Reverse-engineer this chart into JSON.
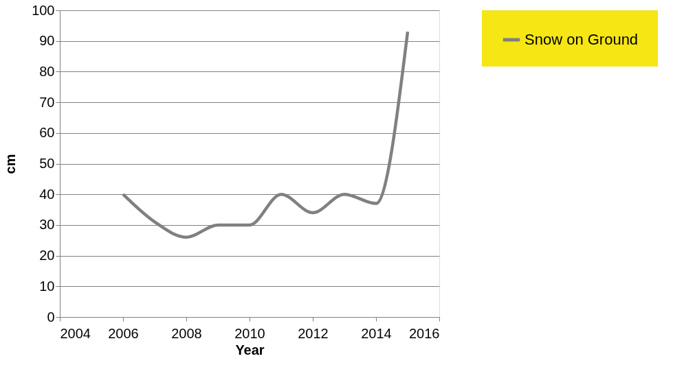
{
  "chart_data": {
    "type": "line",
    "xlabel": "Year",
    "ylabel": "cm",
    "x": [
      2006,
      2007,
      2008,
      2009,
      2010,
      2011,
      2012,
      2013,
      2014,
      2015
    ],
    "series": [
      {
        "name": "Snow on Ground",
        "color": "#808080",
        "values": [
          40,
          31,
          26,
          30,
          30,
          40,
          34,
          40,
          37,
          93
        ]
      }
    ],
    "xlim": [
      2004,
      2016
    ],
    "xticks": [
      2004,
      2006,
      2008,
      2010,
      2012,
      2014,
      2016
    ],
    "ylim": [
      0,
      100
    ],
    "yticks": [
      0,
      10,
      20,
      30,
      40,
      50,
      60,
      70,
      80,
      90,
      100
    ],
    "grid": "y",
    "legend": "right",
    "marker": "none",
    "line_style": "solid"
  }
}
